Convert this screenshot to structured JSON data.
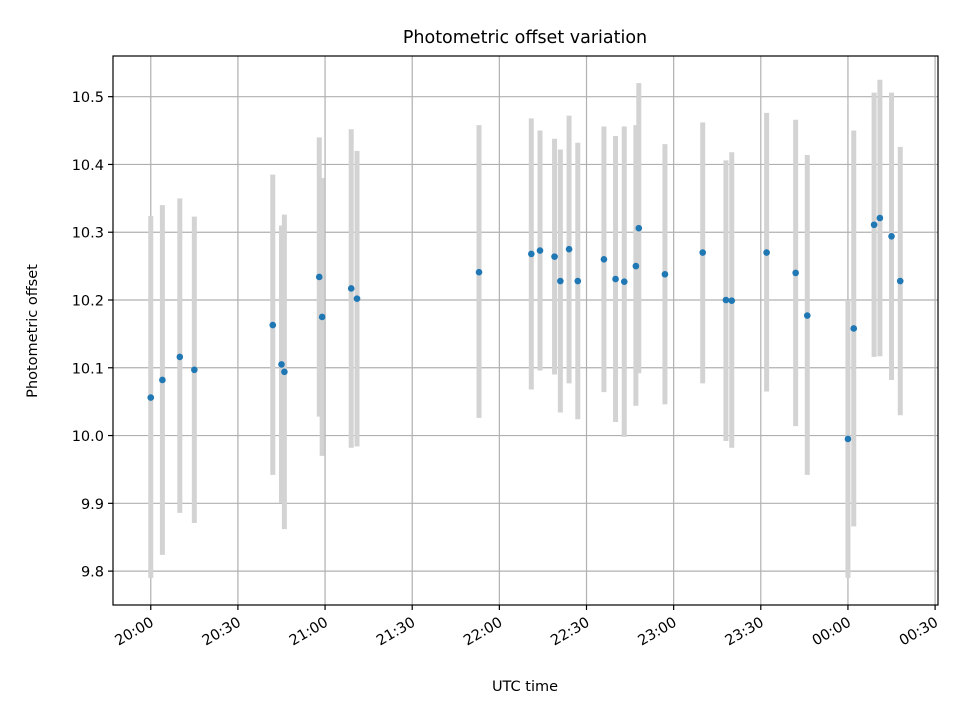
{
  "chart_data": {
    "type": "scatter",
    "title": "Photometric offset variation",
    "xlabel": "UTC time",
    "ylabel": "Photometric offset",
    "x_unit": "UTC time of day (HH:MM), night spanning midnight",
    "xlim": [
      "19:47",
      "00:31"
    ],
    "ylim": [
      9.75,
      10.56
    ],
    "x_ticks": [
      "20:00",
      "20:30",
      "21:00",
      "21:30",
      "22:00",
      "22:30",
      "23:00",
      "23:30",
      "00:00",
      "00:30"
    ],
    "y_ticks": [
      9.8,
      9.9,
      10.0,
      10.1,
      10.2,
      10.3,
      10.4,
      10.5
    ],
    "grid": true,
    "legend": "none",
    "colors": {
      "points": "#1f77b4",
      "errorbars": "#d3d3d3",
      "grid": "#b0b0b0"
    },
    "points": [
      {
        "x": "20:00",
        "y": 10.056,
        "low": 9.79,
        "high": 10.324
      },
      {
        "x": "20:04",
        "y": 10.082,
        "low": 9.824,
        "high": 10.34
      },
      {
        "x": "20:10",
        "y": 10.116,
        "low": 9.886,
        "high": 10.35
      },
      {
        "x": "20:15",
        "y": 10.097,
        "low": 9.871,
        "high": 10.323
      },
      {
        "x": "20:42",
        "y": 10.163,
        "low": 9.942,
        "high": 10.385
      },
      {
        "x": "20:45",
        "y": 10.105,
        "low": 9.901,
        "high": 10.31
      },
      {
        "x": "20:46",
        "y": 10.094,
        "low": 9.862,
        "high": 10.326
      },
      {
        "x": "20:58",
        "y": 10.234,
        "low": 10.028,
        "high": 10.44
      },
      {
        "x": "20:59",
        "y": 10.175,
        "low": 9.97,
        "high": 10.38
      },
      {
        "x": "21:09",
        "y": 10.217,
        "low": 9.982,
        "high": 10.452
      },
      {
        "x": "21:11",
        "y": 10.202,
        "low": 9.984,
        "high": 10.42
      },
      {
        "x": "21:53",
        "y": 10.241,
        "low": 10.026,
        "high": 10.458
      },
      {
        "x": "22:11",
        "y": 10.268,
        "low": 10.068,
        "high": 10.468
      },
      {
        "x": "22:14",
        "y": 10.273,
        "low": 10.096,
        "high": 10.45
      },
      {
        "x": "22:19",
        "y": 10.264,
        "low": 10.09,
        "high": 10.438
      },
      {
        "x": "22:21",
        "y": 10.228,
        "low": 10.034,
        "high": 10.422
      },
      {
        "x": "22:24",
        "y": 10.275,
        "low": 10.077,
        "high": 10.472
      },
      {
        "x": "22:27",
        "y": 10.228,
        "low": 10.024,
        "high": 10.432
      },
      {
        "x": "22:36",
        "y": 10.26,
        "low": 10.064,
        "high": 10.456
      },
      {
        "x": "22:40",
        "y": 10.231,
        "low": 10.02,
        "high": 10.442
      },
      {
        "x": "22:43",
        "y": 10.227,
        "low": 9.998,
        "high": 10.456
      },
      {
        "x": "22:47",
        "y": 10.25,
        "low": 10.044,
        "high": 10.458
      },
      {
        "x": "22:48",
        "y": 10.306,
        "low": 10.092,
        "high": 10.52
      },
      {
        "x": "22:57",
        "y": 10.238,
        "low": 10.046,
        "high": 10.43
      },
      {
        "x": "23:10",
        "y": 10.27,
        "low": 10.077,
        "high": 10.462
      },
      {
        "x": "23:18",
        "y": 10.2,
        "low": 9.992,
        "high": 10.406
      },
      {
        "x": "23:20",
        "y": 10.199,
        "low": 9.982,
        "high": 10.418
      },
      {
        "x": "23:32",
        "y": 10.27,
        "low": 10.065,
        "high": 10.476
      },
      {
        "x": "23:42",
        "y": 10.24,
        "low": 10.014,
        "high": 10.466
      },
      {
        "x": "23:46",
        "y": 10.177,
        "low": 9.942,
        "high": 10.414
      },
      {
        "x": "00:00",
        "y": 9.995,
        "low": 9.79,
        "high": 10.2
      },
      {
        "x": "00:02",
        "y": 10.158,
        "low": 9.866,
        "high": 10.45
      },
      {
        "x": "00:09",
        "y": 10.311,
        "low": 10.116,
        "high": 10.506
      },
      {
        "x": "00:11",
        "y": 10.321,
        "low": 10.117,
        "high": 10.525
      },
      {
        "x": "00:15",
        "y": 10.294,
        "low": 10.082,
        "high": 10.506
      },
      {
        "x": "00:18",
        "y": 10.228,
        "low": 10.03,
        "high": 10.426
      }
    ]
  }
}
